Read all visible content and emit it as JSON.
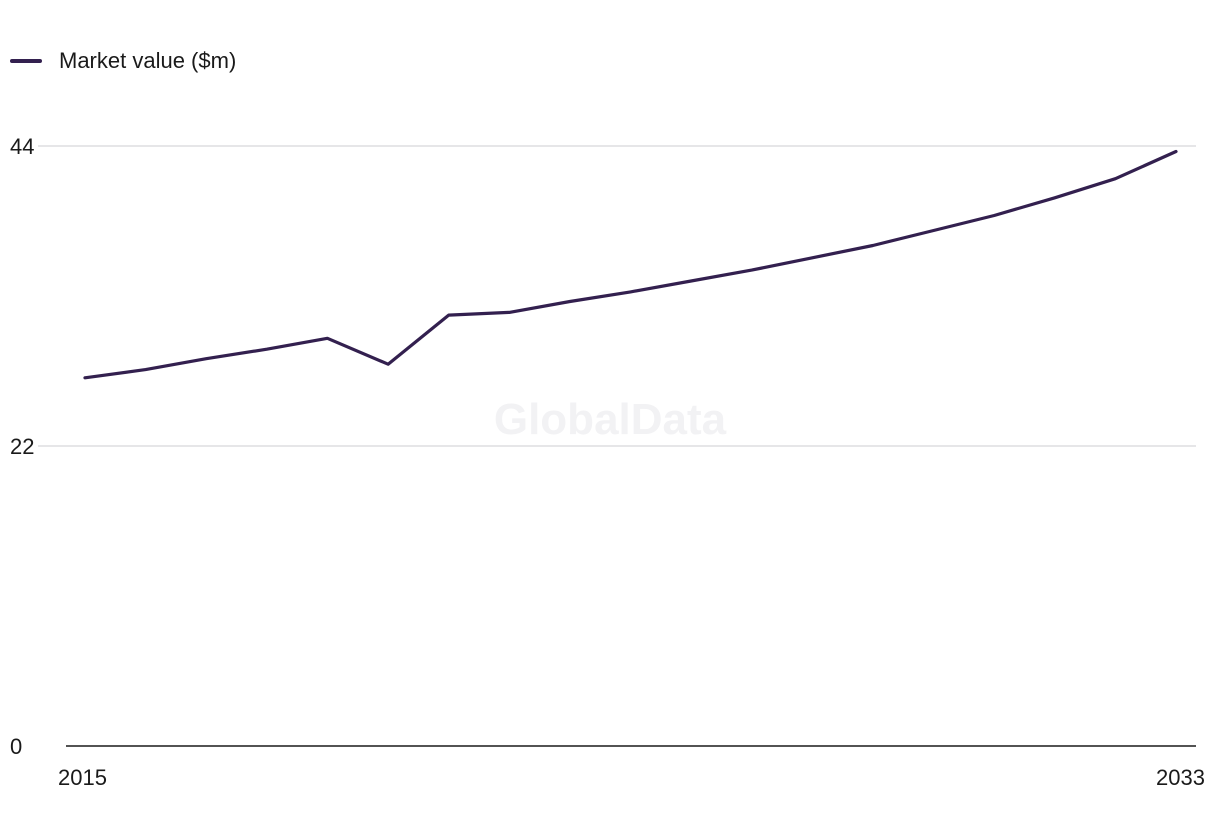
{
  "legend": {
    "label": "Market value ($m)"
  },
  "watermark": "GlobalData",
  "colors": {
    "series": "#33204f",
    "grid": "#d6d6da",
    "axis": "#1a1a1a"
  },
  "chart_data": {
    "type": "line",
    "title": "",
    "xlabel": "",
    "ylabel": "",
    "x": [
      2015,
      2016,
      2017,
      2018,
      2019,
      2020,
      2021,
      2022,
      2023,
      2024,
      2025,
      2026,
      2027,
      2028,
      2029,
      2030,
      2031,
      2032,
      2033
    ],
    "series": [
      {
        "name": "Market value ($m)",
        "values": [
          27.0,
          27.6,
          28.4,
          29.1,
          29.9,
          28.0,
          31.6,
          31.8,
          32.6,
          33.3,
          34.1,
          34.9,
          35.8,
          36.7,
          37.8,
          38.9,
          40.2,
          41.6,
          43.6
        ]
      }
    ],
    "yticks": [
      0,
      22,
      44
    ],
    "xticks": [
      2015,
      2033
    ],
    "ylim": [
      0,
      44
    ],
    "xlim": [
      2015,
      2033
    ],
    "grid": true,
    "legend_position": "top-left"
  }
}
